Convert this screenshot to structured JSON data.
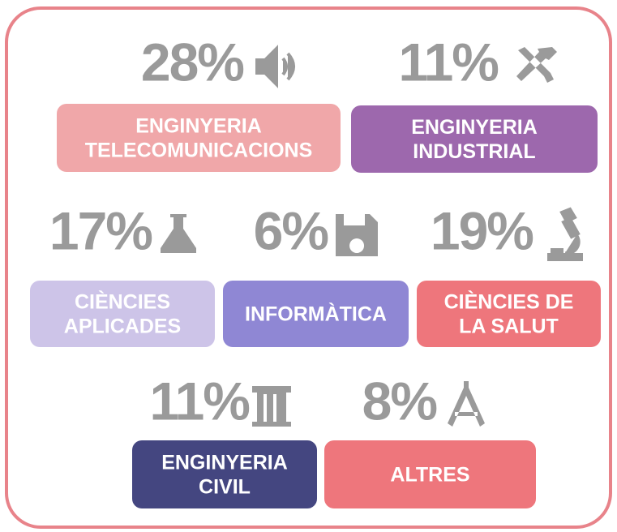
{
  "items": [
    {
      "percent": "28%",
      "label": [
        "ENGINYERIA",
        "TELECOMUNICACIONS"
      ],
      "color": "#f0a7a9"
    },
    {
      "percent": "11%",
      "label": [
        "ENGINYERIA",
        "INDUSTRIAL"
      ],
      "color": "#9d68ad"
    },
    {
      "percent": "17%",
      "label": [
        "CIÈNCIES",
        "APLICADES"
      ],
      "color": "#cdc4e8"
    },
    {
      "percent": "6%",
      "label": [
        "INFORMÀTICA"
      ],
      "color": "#8f87d4"
    },
    {
      "percent": "19%",
      "label": [
        "CIÈNCIES DE",
        "LA SALUT"
      ],
      "color": "#ee767c"
    },
    {
      "percent": "11%",
      "label": [
        "ENGINYERIA",
        "CIVIL"
      ],
      "color": "#444680"
    },
    {
      "percent": "8%",
      "label": [
        "ALTRES"
      ],
      "color": "#ee767c"
    }
  ]
}
